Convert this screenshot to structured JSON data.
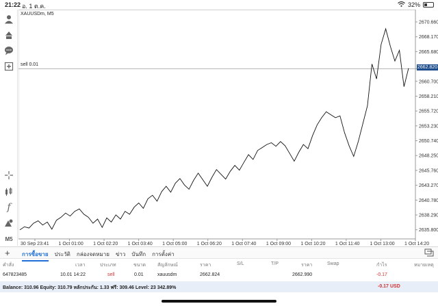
{
  "status_bar": {
    "time": "21:22",
    "date": "อ. 1 ต.ค.",
    "battery": "32%"
  },
  "chart": {
    "symbol": "XAUUSDm, M5",
    "order_label": "sell 0.01",
    "current_price": "2662.820",
    "price_axis": [
      "2670.660",
      "2668.170",
      "2665.680",
      "2662.820",
      "2660.700",
      "2658.210",
      "2655.720",
      "2653.230",
      "2650.740",
      "2648.250",
      "2645.760",
      "2643.270",
      "2640.780",
      "2638.290",
      "2635.800"
    ],
    "time_axis": [
      "30 Sep 23:41",
      "1 Oct 01:00",
      "1 Oct 02:20",
      "1 Oct 03:40",
      "1 Oct 05:00",
      "1 Oct 06:20",
      "1 Oct 07:40",
      "1 Oct 09:00",
      "1 Oct 10:20",
      "1 Oct 11:40",
      "1 Oct 13:00",
      "1 Oct 14:20"
    ]
  },
  "chart_data": {
    "type": "line",
    "title": "XAUUSDm, M5",
    "xlabel": "",
    "ylabel": "",
    "ylim": [
      2634.5,
      2672.5
    ],
    "x_ticks": [
      "30 Sep 23:41",
      "1 Oct 01:00",
      "1 Oct 02:20",
      "1 Oct 03:40",
      "1 Oct 05:00",
      "1 Oct 06:20",
      "1 Oct 07:40",
      "1 Oct 09:00",
      "1 Oct 10:20",
      "1 Oct 11:40",
      "1 Oct 13:00",
      "1 Oct 14:20"
    ],
    "hline": {
      "label": "sell 0.01",
      "value": 2662.82
    },
    "series": [
      {
        "values": [
          2635.8,
          2636.3,
          2636.1,
          2636.9,
          2637.3,
          2636.6,
          2637.1,
          2635.9,
          2637.4,
          2637.9,
          2638.6,
          2638.1,
          2638.9,
          2639.3,
          2638.4,
          2637.9,
          2636.9,
          2637.6,
          2636.2,
          2637.8,
          2637.1,
          2638.3,
          2637.6,
          2638.9,
          2638.4,
          2639.6,
          2640.3,
          2639.4,
          2641.0,
          2641.6,
          2640.6,
          2642.2,
          2643.1,
          2642.1,
          2643.6,
          2644.4,
          2643.3,
          2642.6,
          2644.1,
          2645.3,
          2644.2,
          2643.1,
          2644.6,
          2645.9,
          2645.1,
          2644.3,
          2645.6,
          2646.6,
          2645.8,
          2647.1,
          2648.4,
          2647.6,
          2649.1,
          2649.6,
          2650.1,
          2650.4,
          2649.8,
          2650.6,
          2649.9,
          2648.6,
          2647.3,
          2648.8,
          2650.1,
          2649.4,
          2651.6,
          2653.4,
          2654.6,
          2655.6,
          2655.1,
          2654.6,
          2654.9,
          2652.1,
          2649.9,
          2648.1,
          2650.6,
          2653.6,
          2656.6,
          2663.6,
          2661.1,
          2666.9,
          2669.5,
          2666.6,
          2664.1,
          2665.9,
          2659.8,
          2662.9
        ]
      }
    ]
  },
  "toolbar": {
    "period_label": "M5"
  },
  "tabs": [
    "การซื้อขาย",
    "ประวัติ",
    "กล่องจดหมาย",
    "ข่าว",
    "บันทึก",
    "การตั้งค่า"
  ],
  "table": {
    "headers": [
      "คำสั่ง",
      "เวลา",
      "ประเภท",
      "ขนาด",
      "สัญลักษณ์",
      "ราคา",
      "S/L",
      "T/P",
      "ราคา",
      "Swap",
      "กำไร",
      "หมายเหตุ"
    ],
    "rows": [
      {
        "order": "647823485",
        "time": "10.01 14:22",
        "type": "sell",
        "size": "0.01",
        "symbol": "xauusdm",
        "price": "2662.824",
        "current_price": "2662.990",
        "profit": "-0.17"
      }
    ]
  },
  "balance": {
    "text": "Balance: 310.96 Equity: 310.79 หลักประกัน: 1.33 ฟรี: 309.46 Level: 23 342.89%",
    "profit": "-0.17",
    "currency": "USD"
  },
  "colors": {
    "accent": "#1f6fd6",
    "price_tag": "#1f4e8c",
    "negative": "#d32f2f",
    "balance_bg": "#e7eef8"
  },
  "icons": [
    "user-icon",
    "trade-icon",
    "chat-icon",
    "new-order-icon",
    "crosshair-icon",
    "indicators-icon",
    "function-icon",
    "objects-icon",
    "add-icon",
    "menu-icon",
    "wifi-icon",
    "battery-icon"
  ]
}
